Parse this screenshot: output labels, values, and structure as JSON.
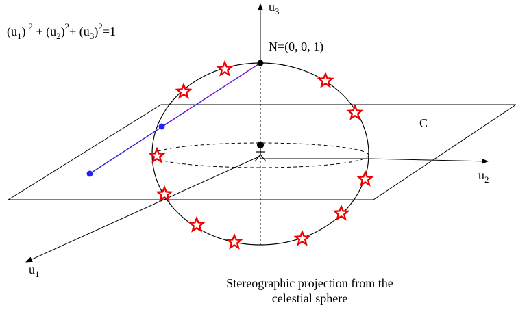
{
  "equation": [
    "(u",
    "1",
    ")",
    "2",
    " + (u",
    "2",
    ")",
    "2",
    "+ (u",
    "3",
    ")",
    "2",
    "=1"
  ],
  "labels": {
    "u3": {
      "base": "u",
      "sub": "3"
    },
    "u2": {
      "base": "u",
      "sub": "2"
    },
    "u1": {
      "base": "u",
      "sub": "1"
    },
    "north": "N=(0, 0, 1)",
    "plane": "C"
  },
  "caption": [
    "Stereographic projection from the",
    "celestial sphere"
  ]
}
